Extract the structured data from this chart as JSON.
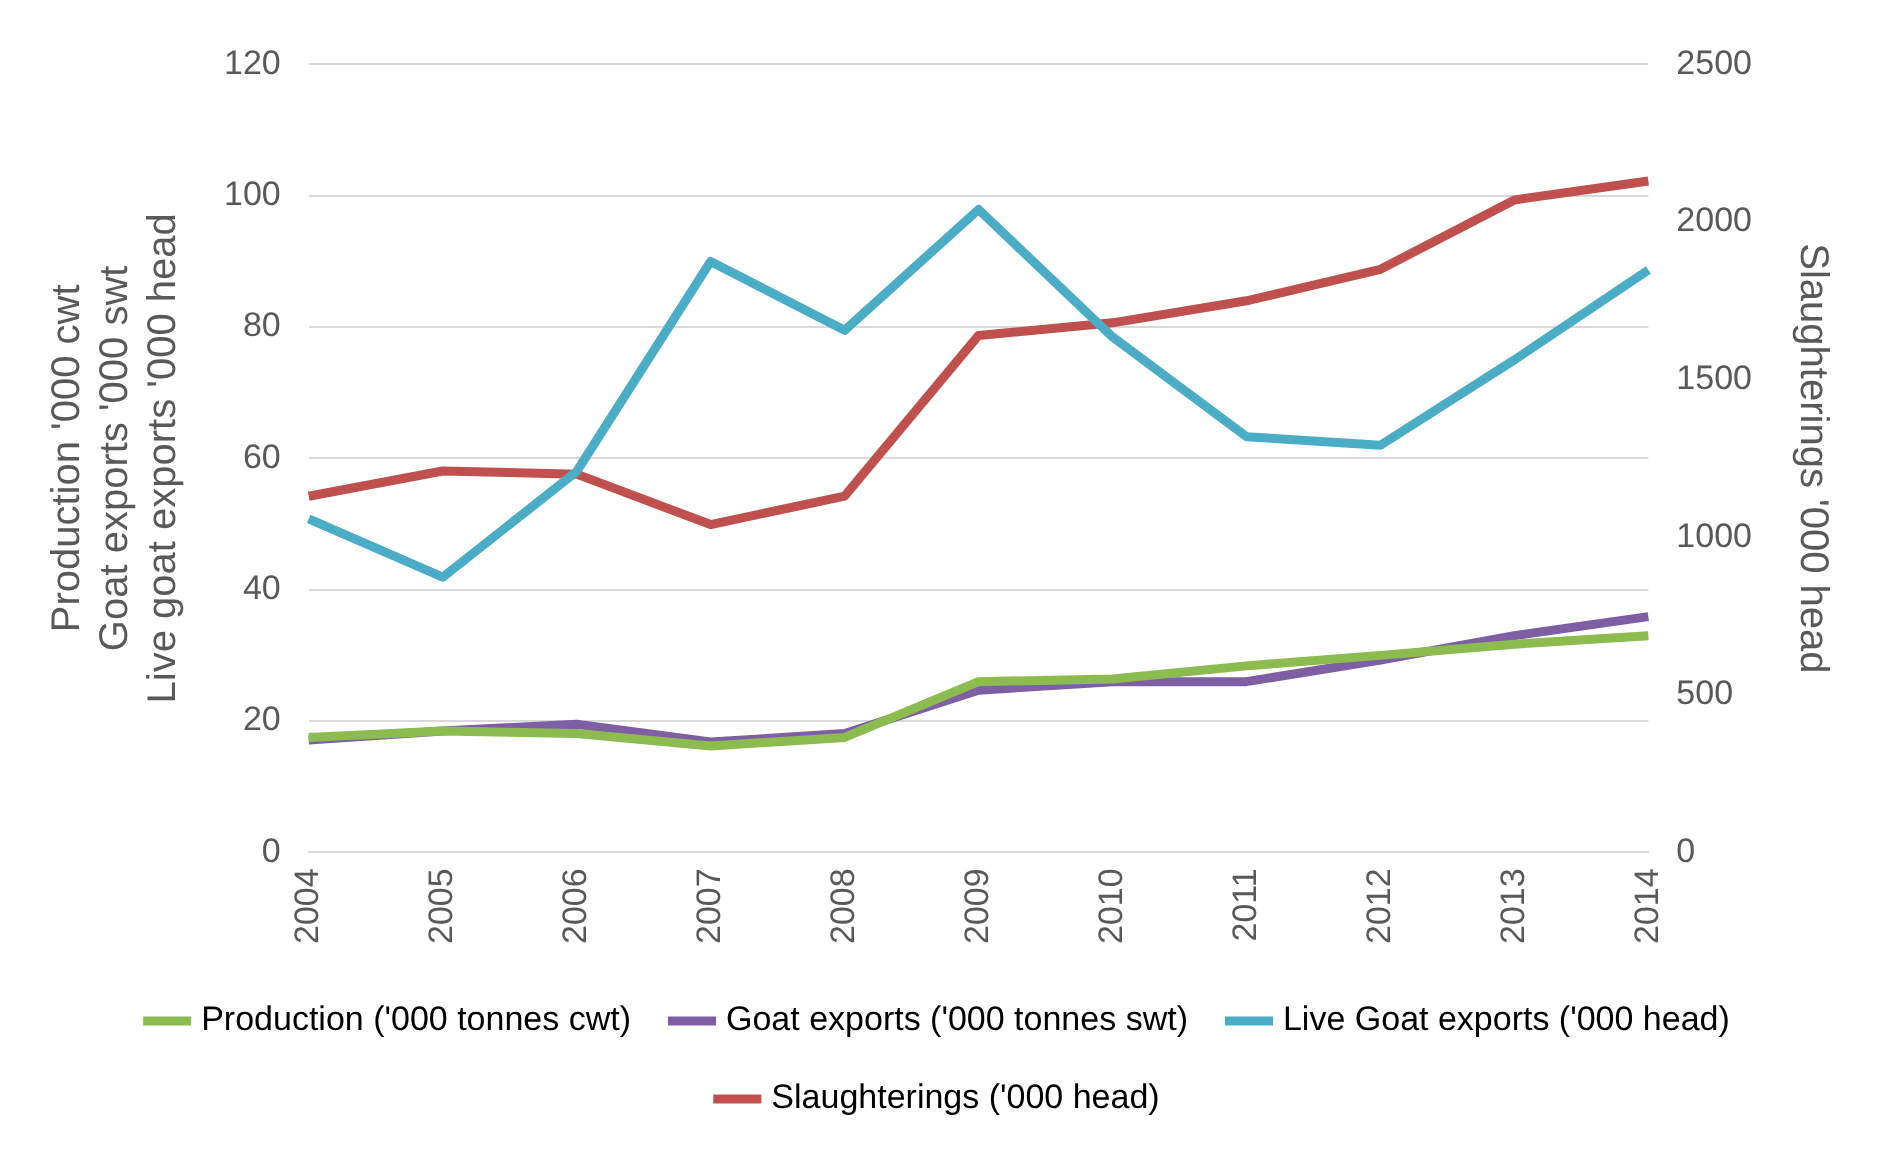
{
  "chart_data": {
    "type": "line",
    "categories": [
      "2004",
      "2005",
      "2006",
      "2007",
      "2008",
      "2009",
      "2010",
      "2011",
      "2012",
      "2013",
      "2014"
    ],
    "ylabel": "Production '000 cwt\nGoat exports '000 swt\nLive goat exports '000 head",
    "y2label": "Slaughterings '000 head",
    "ylim": [
      0,
      120
    ],
    "yticks": [
      0,
      20,
      40,
      60,
      80,
      100,
      120
    ],
    "y2lim": [
      0,
      2500
    ],
    "y2ticks": [
      0,
      500,
      1000,
      1500,
      2000,
      2500
    ],
    "grid": "y",
    "legend": "bottom",
    "marker": "none",
    "line_style": "solid",
    "series": [
      {
        "name": "Production ('000 tonnes cwt)",
        "color": "#8cbc4f",
        "values": [
          17.5,
          18.5,
          18.1,
          16.2,
          17.5,
          26,
          26.4,
          28.4,
          30,
          31.7,
          33
        ]
      },
      {
        "name": "Goat exports ('000 tonnes swt)",
        "color": "#7e5fa3",
        "values": [
          17.1,
          18.5,
          19.5,
          16.8,
          18.1,
          24.7,
          26,
          26,
          29.3,
          33,
          35.9
        ]
      },
      {
        "name": "Live Goat exports ('000 head)",
        "color": "#4bacc6",
        "values": [
          50.8,
          41.9,
          58,
          90,
          79.5,
          97.9,
          78.5,
          63.3,
          62,
          75,
          88.7
        ]
      },
      {
        "name": "Slaughterings ('000 head)",
        "color": "#c0504d",
        "axis": "y2",
        "values": [
          1130,
          1210,
          1200,
          1040,
          1130,
          1640,
          1680,
          1750,
          1850,
          2070,
          2130
        ]
      }
    ]
  }
}
